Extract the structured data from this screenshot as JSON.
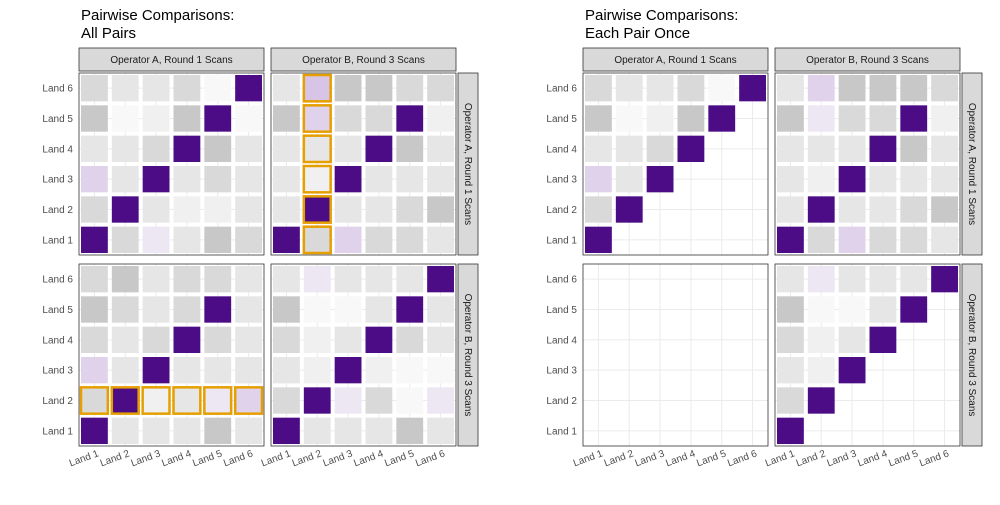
{
  "chart_data": [
    {
      "type": "heatmap",
      "title": [
        "Pairwise Comparisons:",
        " All Pairs"
      ],
      "categories": [
        "Land 1",
        "Land 2",
        "Land 3",
        "Land 4",
        "Land 5",
        "Land 6"
      ],
      "column_facets": [
        "Operator A, Round 1 Scans",
        "Operator B, Round 3 Scans"
      ],
      "row_facets": [
        "Operator A, Round 1 Scans",
        "Operator B, Round 3 Scans"
      ],
      "outline_color": "#E69F00",
      "grid": true,
      "panels": [
        [
          {
            "fills": [
              [
                "#4b0c85",
                "#d9d9d9",
                "#ede6f3",
                "#e6e6e6",
                "#c8c8c8",
                "#d9d9d9"
              ],
              [
                "#d9d9d9",
                "#4b0c85",
                "#e6e6e6",
                "#f0f0f0",
                "#f0f0f0",
                "#e6e6e6"
              ],
              [
                "#e0d2ea",
                "#e6e6e6",
                "#4b0c85",
                "#e6e6e6",
                "#d9d9d9",
                "#e6e6e6"
              ],
              [
                "#e6e6e6",
                "#e6e6e6",
                "#d9d9d9",
                "#4b0c85",
                "#c8c8c8",
                "#e6e6e6"
              ],
              [
                "#c8c8c8",
                "#f8f8f8",
                "#f0f0f0",
                "#c8c8c8",
                "#4b0c85",
                "#f8f8f8"
              ],
              [
                "#d9d9d9",
                "#e6e6e6",
                "#e6e6e6",
                "#d9d9d9",
                "#f8f8f8",
                "#4b0c85"
              ]
            ]
          },
          {
            "fills": [
              [
                "#4b0c85",
                "#d9d9d9",
                "#e0d2ea",
                "#d9d9d9",
                "#d9d9d9",
                "#e6e6e6"
              ],
              [
                "#e6e6e6",
                "#4b0c85",
                "#e6e6e6",
                "#e6e6e6",
                "#d9d9d9",
                "#c8c8c8"
              ],
              [
                "#e6e6e6",
                "#f0f0f0",
                "#4b0c85",
                "#e6e6e6",
                "#e6e6e6",
                "#e6e6e6"
              ],
              [
                "#e6e6e6",
                "#e6e6e6",
                "#e6e6e6",
                "#4b0c85",
                "#c8c8c8",
                "#e6e6e6"
              ],
              [
                "#c8c8c8",
                "#e0d2ea",
                "#d9d9d9",
                "#d9d9d9",
                "#4b0c85",
                "#f0f0f0"
              ],
              [
                "#e6e6e6",
                "#d8c4e6",
                "#c8c8c8",
                "#c8c8c8",
                "#d9d9d9",
                "#d9d9d9"
              ]
            ],
            "highlight": {
              "axis": "column",
              "index": 1
            }
          }
        ],
        [
          {
            "fills": [
              [
                "#4b0c85",
                "#e6e6e6",
                "#e6e6e6",
                "#e6e6e6",
                "#c8c8c8",
                "#e6e6e6"
              ],
              [
                "#d9d9d9",
                "#4b0c85",
                "#f0f0f0",
                "#e6e6e6",
                "#ede6f3",
                "#e0d2ea"
              ],
              [
                "#e0d2ea",
                "#e6e6e6",
                "#4b0c85",
                "#e6e6e6",
                "#e6e6e6",
                "#e6e6e6"
              ],
              [
                "#d9d9d9",
                "#e6e6e6",
                "#d9d9d9",
                "#4b0c85",
                "#d9d9d9",
                "#e6e6e6"
              ],
              [
                "#c8c8c8",
                "#d9d9d9",
                "#e6e6e6",
                "#d9d9d9",
                "#4b0c85",
                "#e6e6e6"
              ],
              [
                "#d9d9d9",
                "#c8c8c8",
                "#e6e6e6",
                "#d9d9d9",
                "#d9d9d9",
                "#e6e6e6"
              ]
            ],
            "highlight": {
              "axis": "row",
              "index": 1
            }
          },
          {
            "fills": [
              [
                "#4b0c85",
                "#e6e6e6",
                "#e6e6e6",
                "#e6e6e6",
                "#c8c8c8",
                "#e6e6e6"
              ],
              [
                "#d9d9d9",
                "#4b0c85",
                "#ede6f3",
                "#d9d9d9",
                "#f8f8f8",
                "#ede6f3"
              ],
              [
                "#e6e6e6",
                "#f0f0f0",
                "#4b0c85",
                "#f0f0f0",
                "#f8f8f8",
                "#f8f8f8"
              ],
              [
                "#d9d9d9",
                "#f0f0f0",
                "#e6e6e6",
                "#4b0c85",
                "#d9d9d9",
                "#e6e6e6"
              ],
              [
                "#c8c8c8",
                "#f8f8f8",
                "#f8f8f8",
                "#e6e6e6",
                "#4b0c85",
                "#e6e6e6"
              ],
              [
                "#e6e6e6",
                "#ede6f3",
                "#e6e6e6",
                "#e6e6e6",
                "#e6e6e6",
                "#4b0c85"
              ]
            ]
          }
        ]
      ]
    },
    {
      "type": "heatmap",
      "title": [
        "Pairwise Comparisons:",
        " Each Pair Once"
      ],
      "categories": [
        "Land 1",
        "Land 2",
        "Land 3",
        "Land 4",
        "Land 5",
        "Land 6"
      ],
      "column_facets": [
        "Operator A, Round 1 Scans",
        "Operator B, Round 3 Scans"
      ],
      "row_facets": [
        "Operator A, Round 1 Scans",
        "Operator B, Round 3 Scans"
      ],
      "grid": true,
      "panels": [
        [
          {
            "fills": [
              [
                "#4b0c85",
                null,
                null,
                null,
                null,
                null
              ],
              [
                "#d9d9d9",
                "#4b0c85",
                null,
                null,
                null,
                null
              ],
              [
                "#e0d2ea",
                "#e6e6e6",
                "#4b0c85",
                null,
                null,
                null
              ],
              [
                "#e6e6e6",
                "#e6e6e6",
                "#d9d9d9",
                "#4b0c85",
                null,
                null
              ],
              [
                "#c8c8c8",
                "#f8f8f8",
                "#f0f0f0",
                "#c8c8c8",
                "#4b0c85",
                null
              ],
              [
                "#d9d9d9",
                "#e6e6e6",
                "#e6e6e6",
                "#d9d9d9",
                "#f8f8f8",
                "#4b0c85"
              ]
            ]
          },
          {
            "fills": [
              [
                "#4b0c85",
                "#d9d9d9",
                "#e0d2ea",
                "#d9d9d9",
                "#d9d9d9",
                "#e6e6e6"
              ],
              [
                "#e6e6e6",
                "#4b0c85",
                "#e6e6e6",
                "#e6e6e6",
                "#d9d9d9",
                "#c8c8c8"
              ],
              [
                "#e6e6e6",
                "#f0f0f0",
                "#4b0c85",
                "#e6e6e6",
                "#e6e6e6",
                "#e6e6e6"
              ],
              [
                "#e6e6e6",
                "#e6e6e6",
                "#e6e6e6",
                "#4b0c85",
                "#c8c8c8",
                "#e6e6e6"
              ],
              [
                "#c8c8c8",
                "#ede6f3",
                "#d9d9d9",
                "#d9d9d9",
                "#4b0c85",
                "#f0f0f0"
              ],
              [
                "#e6e6e6",
                "#e0d2ea",
                "#c8c8c8",
                "#c8c8c8",
                "#c8c8c8",
                "#d9d9d9"
              ]
            ]
          }
        ],
        [
          {
            "fills": []
          },
          {
            "fills": [
              [
                "#4b0c85",
                null,
                null,
                null,
                null,
                null
              ],
              [
                "#d9d9d9",
                "#4b0c85",
                null,
                null,
                null,
                null
              ],
              [
                "#e6e6e6",
                "#f0f0f0",
                "#4b0c85",
                null,
                null,
                null
              ],
              [
                "#d9d9d9",
                "#f0f0f0",
                "#e6e6e6",
                "#4b0c85",
                null,
                null
              ],
              [
                "#c8c8c8",
                "#f8f8f8",
                "#f8f8f8",
                "#e6e6e6",
                "#4b0c85",
                null
              ],
              [
                "#e6e6e6",
                "#ede6f3",
                "#e6e6e6",
                "#e6e6e6",
                "#e6e6e6",
                "#4b0c85"
              ]
            ]
          }
        ]
      ]
    }
  ]
}
